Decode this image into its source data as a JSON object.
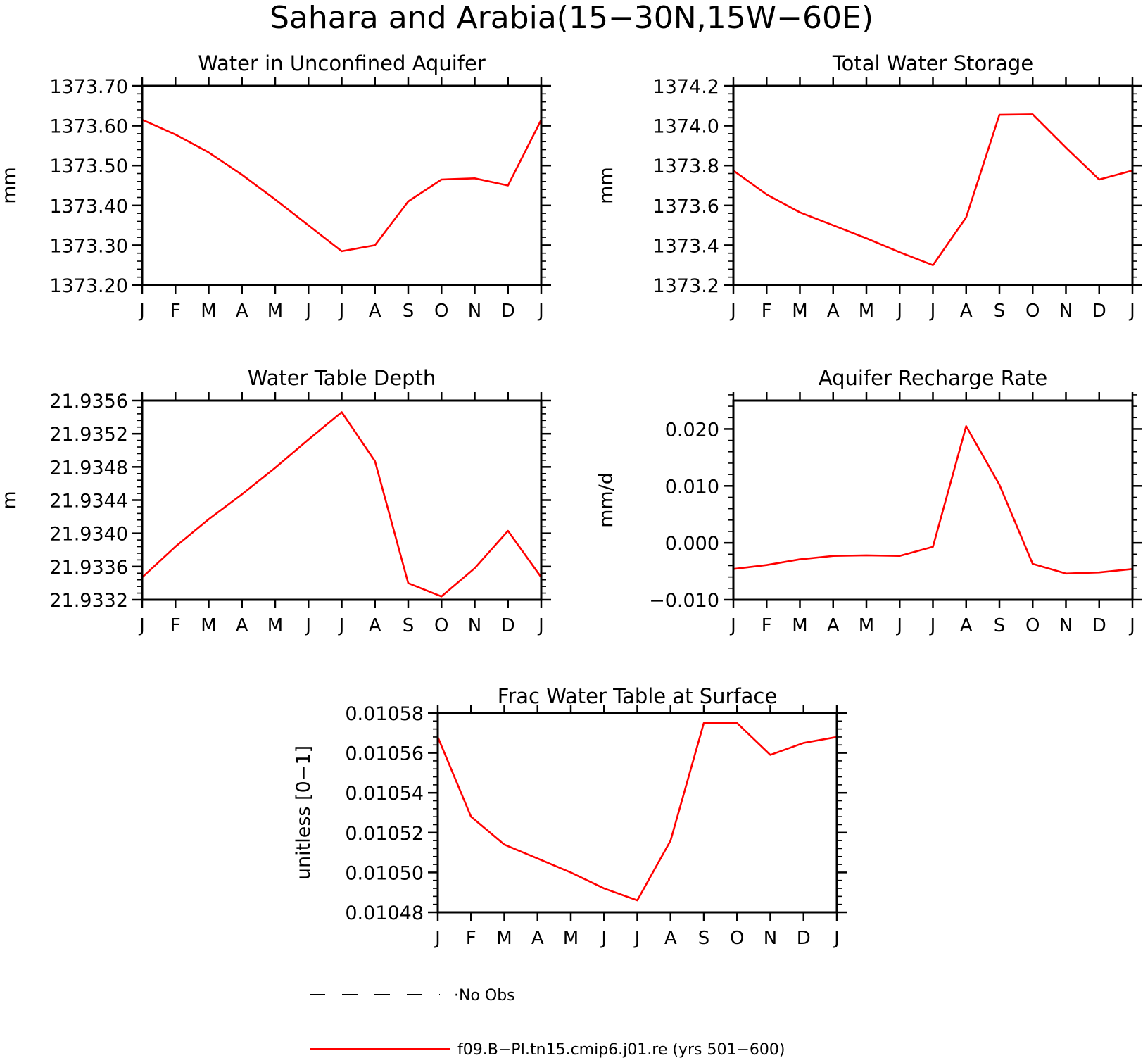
{
  "title": "Sahara and Arabia(15−30N,15W−60E)",
  "colors": {
    "model": "#ff0000",
    "obs": "#000000"
  },
  "legend": {
    "obs_label": "No Obs",
    "model_label": "f09.B−PI.tn15.cmip6.j01.re (yrs 501−600)"
  },
  "chart_data": [
    {
      "type": "line",
      "title": "Water in Unconfined Aquifer",
      "xlabel": "",
      "ylabel": "mm",
      "categories": [
        "J",
        "F",
        "M",
        "A",
        "M",
        "J",
        "J",
        "A",
        "S",
        "O",
        "N",
        "D",
        "J"
      ],
      "ylim": [
        1373.2,
        1373.7
      ],
      "yticks": [
        1373.2,
        1373.3,
        1373.4,
        1373.5,
        1373.6,
        1373.7
      ],
      "ytick_labels": [
        "1373.20",
        "1373.30",
        "1373.40",
        "1373.50",
        "1373.60",
        "1373.70"
      ],
      "grid": false,
      "series": [
        {
          "values": [
            1373.615,
            1373.578,
            1373.533,
            1373.477,
            1373.415,
            1373.35,
            1373.285,
            1373.3,
            1373.41,
            1373.465,
            1373.468,
            1373.45,
            1373.615
          ]
        }
      ]
    },
    {
      "type": "line",
      "title": "Total Water Storage",
      "xlabel": "",
      "ylabel": "mm",
      "categories": [
        "J",
        "F",
        "M",
        "A",
        "M",
        "J",
        "J",
        "A",
        "S",
        "O",
        "N",
        "D",
        "J"
      ],
      "ylim": [
        1373.2,
        1374.2
      ],
      "yticks": [
        1373.2,
        1373.4,
        1373.6,
        1373.8,
        1374.0,
        1374.2
      ],
      "ytick_labels": [
        "1373.2",
        "1373.4",
        "1373.6",
        "1373.8",
        "1374.0",
        "1374.2"
      ],
      "grid": false,
      "series": [
        {
          "values": [
            1373.775,
            1373.655,
            1373.565,
            1373.5,
            1373.435,
            1373.365,
            1373.3,
            1373.54,
            1374.055,
            1374.057,
            1373.89,
            1373.73,
            1373.775
          ]
        }
      ]
    },
    {
      "type": "line",
      "title": "Water Table Depth",
      "xlabel": "",
      "ylabel": "m",
      "categories": [
        "J",
        "F",
        "M",
        "A",
        "M",
        "J",
        "J",
        "A",
        "S",
        "O",
        "N",
        "D",
        "J"
      ],
      "ylim": [
        21.9332,
        21.9356
      ],
      "yticks": [
        21.9332,
        21.9336,
        21.934,
        21.9344,
        21.9348,
        21.9352,
        21.9356
      ],
      "ytick_labels": [
        "21.9332",
        "21.9336",
        "21.9340",
        "21.9344",
        "21.9348",
        "21.9352",
        "21.9356"
      ],
      "grid": false,
      "series": [
        {
          "values": [
            21.93347,
            21.93384,
            21.93417,
            21.93447,
            21.93479,
            21.93513,
            21.93546,
            21.93487,
            21.9334,
            21.93324,
            21.93358,
            21.93403,
            21.93347
          ]
        }
      ]
    },
    {
      "type": "line",
      "title": "Aquifer Recharge Rate",
      "xlabel": "",
      "ylabel": "mm/d",
      "categories": [
        "J",
        "F",
        "M",
        "A",
        "M",
        "J",
        "J",
        "A",
        "S",
        "O",
        "N",
        "D",
        "J"
      ],
      "ylim": [
        -0.01,
        0.025
      ],
      "yticks": [
        -0.01,
        0.0,
        0.01,
        0.02
      ],
      "ytick_labels": [
        "−0.010",
        "0.000",
        "0.010",
        "0.020"
      ],
      "grid": false,
      "series": [
        {
          "values": [
            -0.0046,
            -0.0039,
            -0.0029,
            -0.0023,
            -0.0022,
            -0.0023,
            -0.0007,
            0.0205,
            0.0102,
            -0.0037,
            -0.0054,
            -0.0052,
            -0.0046
          ]
        }
      ]
    },
    {
      "type": "line",
      "title": "Frac Water Table at Surface",
      "xlabel": "",
      "ylabel": "unitless [0−1]",
      "categories": [
        "J",
        "F",
        "M",
        "A",
        "M",
        "J",
        "J",
        "A",
        "S",
        "O",
        "N",
        "D",
        "J"
      ],
      "ylim": [
        0.01048,
        0.01058
      ],
      "yticks": [
        0.01048,
        0.0105,
        0.01052,
        0.01054,
        0.01056,
        0.01058
      ],
      "ytick_labels": [
        "0.01048",
        "0.01050",
        "0.01052",
        "0.01054",
        "0.01056",
        "0.01058"
      ],
      "grid": false,
      "series": [
        {
          "values": [
            0.010568,
            0.010528,
            0.010514,
            0.010507,
            0.0105,
            0.010492,
            0.010486,
            0.010516,
            0.010575,
            0.010575,
            0.010559,
            0.010565,
            0.010568
          ]
        }
      ]
    }
  ]
}
